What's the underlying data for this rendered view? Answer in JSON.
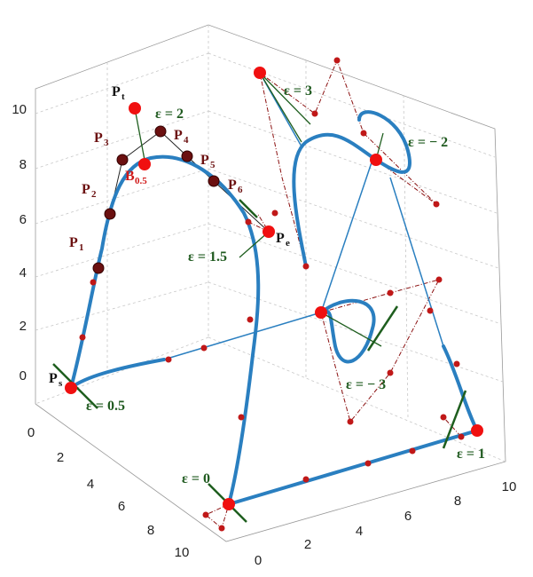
{
  "figure": {
    "z_ticks": [
      10,
      8,
      6,
      4,
      2,
      0
    ],
    "y_ticks": [
      0,
      2,
      4,
      6,
      8,
      10
    ],
    "x_ticks": [
      0,
      2,
      4,
      6,
      8,
      10
    ],
    "point_labels": [
      {
        "main": "P",
        "sub": "t"
      },
      {
        "main": "P",
        "sub": "3"
      },
      {
        "main": "P",
        "sub": "4"
      },
      {
        "main": "B",
        "sub": "0.5"
      },
      {
        "main": "P",
        "sub": "2"
      },
      {
        "main": "P",
        "sub": "5"
      },
      {
        "main": "P",
        "sub": "6"
      },
      {
        "main": "P",
        "sub": "1"
      },
      {
        "main": "P",
        "sub": "e"
      },
      {
        "main": "P",
        "sub": "s"
      }
    ],
    "epsilon_labels": [
      "ε = 2",
      "ε = 3",
      "ε = − 2",
      "ε = 1.5",
      "ε = 0.5",
      "ε = − 3",
      "ε = 0",
      "ε = 1"
    ]
  }
}
